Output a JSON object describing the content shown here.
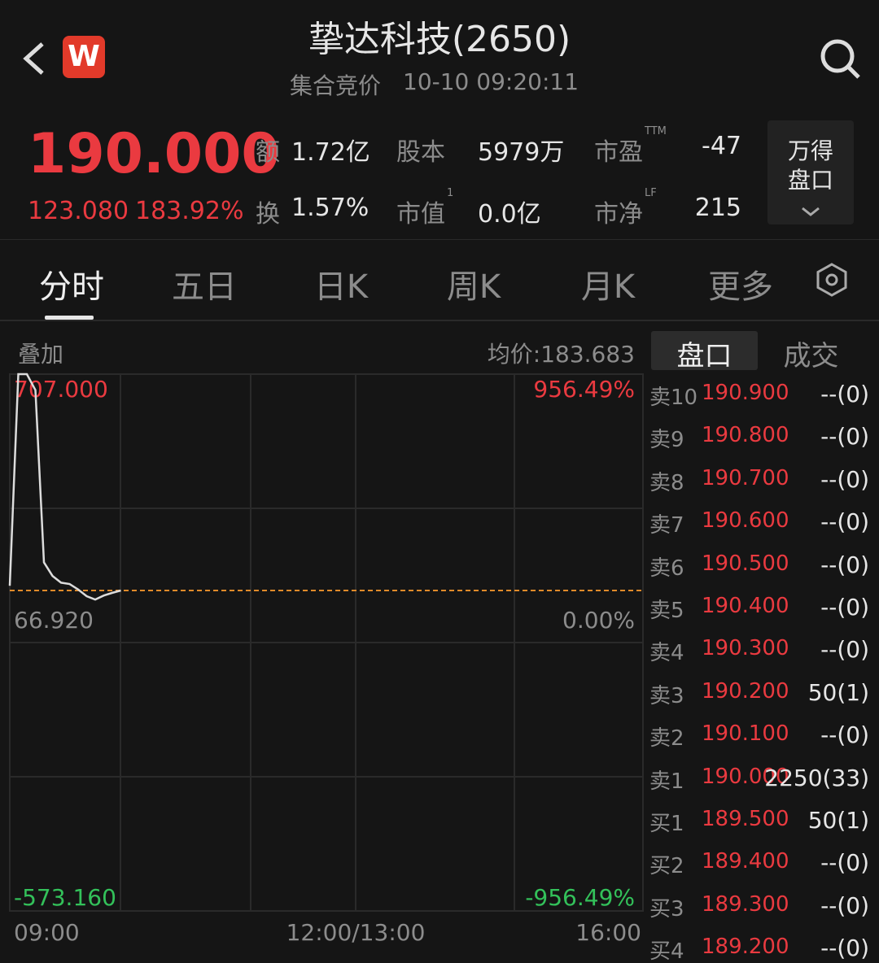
{
  "header": {
    "logo": "W",
    "title": "挚达科技(2650)",
    "status": "集合竞价",
    "time": "10-10 09:20:11"
  },
  "quote": {
    "price": "190.000",
    "change": "123.080",
    "change_pct": "183.92%",
    "stats": [
      {
        "label": "额",
        "value": "1.72亿"
      },
      {
        "label": "股本",
        "value": "5979万"
      },
      {
        "label": "市盈",
        "sup": "TTM",
        "value": "-47"
      },
      {
        "label": "换",
        "value": "1.57%"
      },
      {
        "label": "市值",
        "sup": "1",
        "value": "0.0亿"
      },
      {
        "label": "市净",
        "sup": "LF",
        "value": "215"
      }
    ],
    "button": [
      "万得",
      "盘口"
    ]
  },
  "tabs": [
    "分时",
    "五日",
    "日K",
    "周K",
    "月K",
    "更多"
  ],
  "chart": {
    "overlay": "叠加",
    "avg_price": "均价:183.683",
    "ylim": [
      -573.16,
      707
    ],
    "yticks": [
      {
        "value": 707,
        "label": "707.000"
      },
      {
        "value": 66.92,
        "label": "66.920"
      },
      {
        "value": -573.16,
        "label": "-573.160"
      }
    ],
    "pct_labels": [
      "956.49%",
      "0.00%",
      "-956.49%"
    ],
    "x_labels": [
      "09:00",
      "12:00/13:00",
      "16:00"
    ],
    "values": [
      81,
      707,
      707,
      660,
      150,
      110,
      90,
      86,
      70,
      50,
      40,
      52,
      60,
      66.92
    ]
  },
  "book": {
    "tabs": [
      "盘口",
      "成交"
    ],
    "rows": [
      [
        "卖10",
        "190.900",
        "--(0)"
      ],
      [
        "卖9",
        "190.800",
        "--(0)"
      ],
      [
        "卖8",
        "190.700",
        "--(0)"
      ],
      [
        "卖7",
        "190.600",
        "--(0)"
      ],
      [
        "卖6",
        "190.500",
        "--(0)"
      ],
      [
        "卖5",
        "190.400",
        "--(0)"
      ],
      [
        "卖4",
        "190.300",
        "--(0)"
      ],
      [
        "卖3",
        "190.200",
        "50(1)"
      ],
      [
        "卖2",
        "190.100",
        "--(0)"
      ],
      [
        "卖1",
        "190.000",
        "2250(33)"
      ],
      [
        "买1",
        "189.500",
        "50(1)"
      ],
      [
        "买2",
        "189.400",
        "--(0)"
      ],
      [
        "买3",
        "189.300",
        "--(0)"
      ],
      [
        "买4",
        "189.200",
        "--(0)"
      ]
    ]
  }
}
